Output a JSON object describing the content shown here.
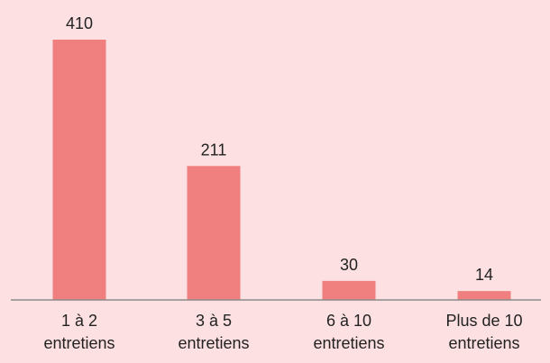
{
  "chart_data": {
    "type": "bar",
    "categories": [
      [
        "1 à 2",
        "entretiens"
      ],
      [
        "3 à 5",
        "entretiens"
      ],
      [
        "6 à 10",
        "entretiens"
      ],
      [
        "Plus de 10",
        "entretiens"
      ]
    ],
    "values": [
      410,
      211,
      30,
      14
    ],
    "value_labels": [
      "410",
      "211",
      "30",
      "14"
    ],
    "ylim": [
      0,
      410
    ],
    "grid": false,
    "colors": {
      "background": "#fde0e2",
      "bar": "#f08080",
      "axis": "#8c8c8c",
      "text": "#222222"
    }
  }
}
